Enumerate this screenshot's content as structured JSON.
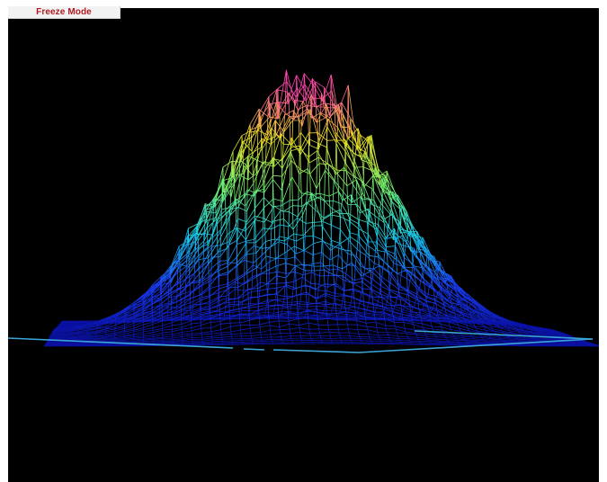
{
  "toolbar": {
    "freeze_label": "Freeze Mode"
  },
  "viewer": {
    "background_color": "#000000",
    "baseline_color": "#3aa6d8",
    "colormap": [
      "#0a10a0",
      "#1a3cf0",
      "#18c8e8",
      "#70f070",
      "#f0e020",
      "#ff40b0"
    ]
  }
}
